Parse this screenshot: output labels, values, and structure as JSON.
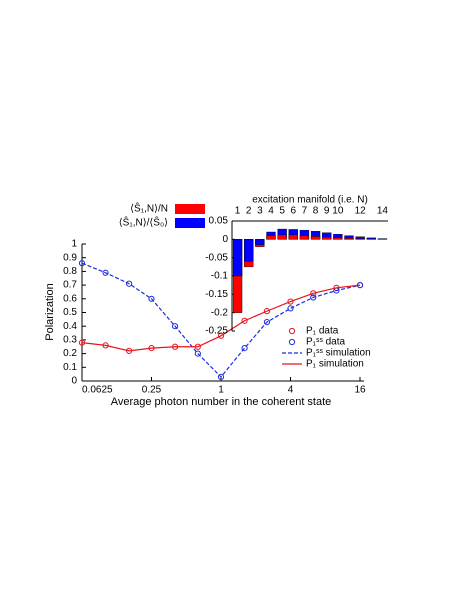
{
  "chart_data": [
    {
      "type": "line",
      "xlabel": "Average photon number in the coherent state",
      "ylabel": "Polarization",
      "x": [
        0.0625,
        0.1,
        0.16,
        0.25,
        0.4,
        0.63,
        1,
        1.6,
        2.5,
        4,
        6.3,
        10,
        16
      ],
      "xscale": "log2",
      "xlim": [
        0.0625,
        16
      ],
      "xticks": [
        0.0625,
        0.25,
        1,
        4,
        16
      ],
      "ylim": [
        0,
        1
      ],
      "yticks": [
        0,
        0.1,
        0.2,
        0.3,
        0.4,
        0.5,
        0.6,
        0.7,
        0.8,
        0.9,
        1
      ],
      "legend": "lower right",
      "series": [
        {
          "name": "P₁ data",
          "color": "#e8141c",
          "marker": "circle",
          "values": [
            0.28,
            0.26,
            0.22,
            0.24,
            0.25,
            0.25,
            0.33,
            0.44,
            0.51,
            0.58,
            0.64,
            0.68,
            0.7
          ]
        },
        {
          "name": "P₁ˢˢ data",
          "color": "#1c2ee0",
          "marker": "circle",
          "values": [
            0.86,
            0.79,
            0.71,
            0.6,
            0.4,
            0.2,
            0.03,
            0.24,
            0.43,
            0.53,
            0.61,
            0.66,
            0.7
          ]
        },
        {
          "name": "P₁ˢˢ simulation",
          "color": "#1c2ee0",
          "dash": true,
          "values": [
            0.86,
            0.79,
            0.71,
            0.6,
            0.4,
            0.2,
            0.03,
            0.24,
            0.43,
            0.53,
            0.61,
            0.66,
            0.7
          ]
        },
        {
          "name": "P₁ simulation",
          "color": "#e8141c",
          "dash": false,
          "values": [
            0.28,
            0.26,
            0.22,
            0.24,
            0.25,
            0.25,
            0.33,
            0.44,
            0.51,
            0.58,
            0.64,
            0.68,
            0.7
          ]
        }
      ]
    },
    {
      "type": "bar",
      "title": "excitation manifold (i.e. N)",
      "categories": [
        "1",
        "2",
        "3",
        "4",
        "5",
        "6",
        "7",
        "8",
        "9",
        "10",
        null,
        "12",
        null,
        "14"
      ],
      "ylim": [
        -0.25,
        0.05
      ],
      "yticks": [
        0.05,
        0,
        -0.05,
        -0.1,
        -0.15,
        -0.2,
        -0.25
      ],
      "legend": "upper left",
      "series": [
        {
          "name": "⟨Ŝ₁,N⟩/N",
          "color": "#ff0000",
          "values": [
            -0.2,
            -0.075,
            -0.02,
            0.01,
            0.012,
            0.012,
            0.01,
            0.008,
            0.006,
            0.004,
            0.003,
            0.002,
            0.001,
            0.0005
          ]
        },
        {
          "name": "⟨Ŝ₁,N⟩/⟨Ŝ₀⟩",
          "color": "#0000ff",
          "values": [
            -0.1,
            -0.06,
            -0.015,
            0.02,
            0.028,
            0.027,
            0.025,
            0.022,
            0.018,
            0.014,
            0.01,
            0.007,
            0.004,
            0.002
          ]
        }
      ]
    }
  ]
}
